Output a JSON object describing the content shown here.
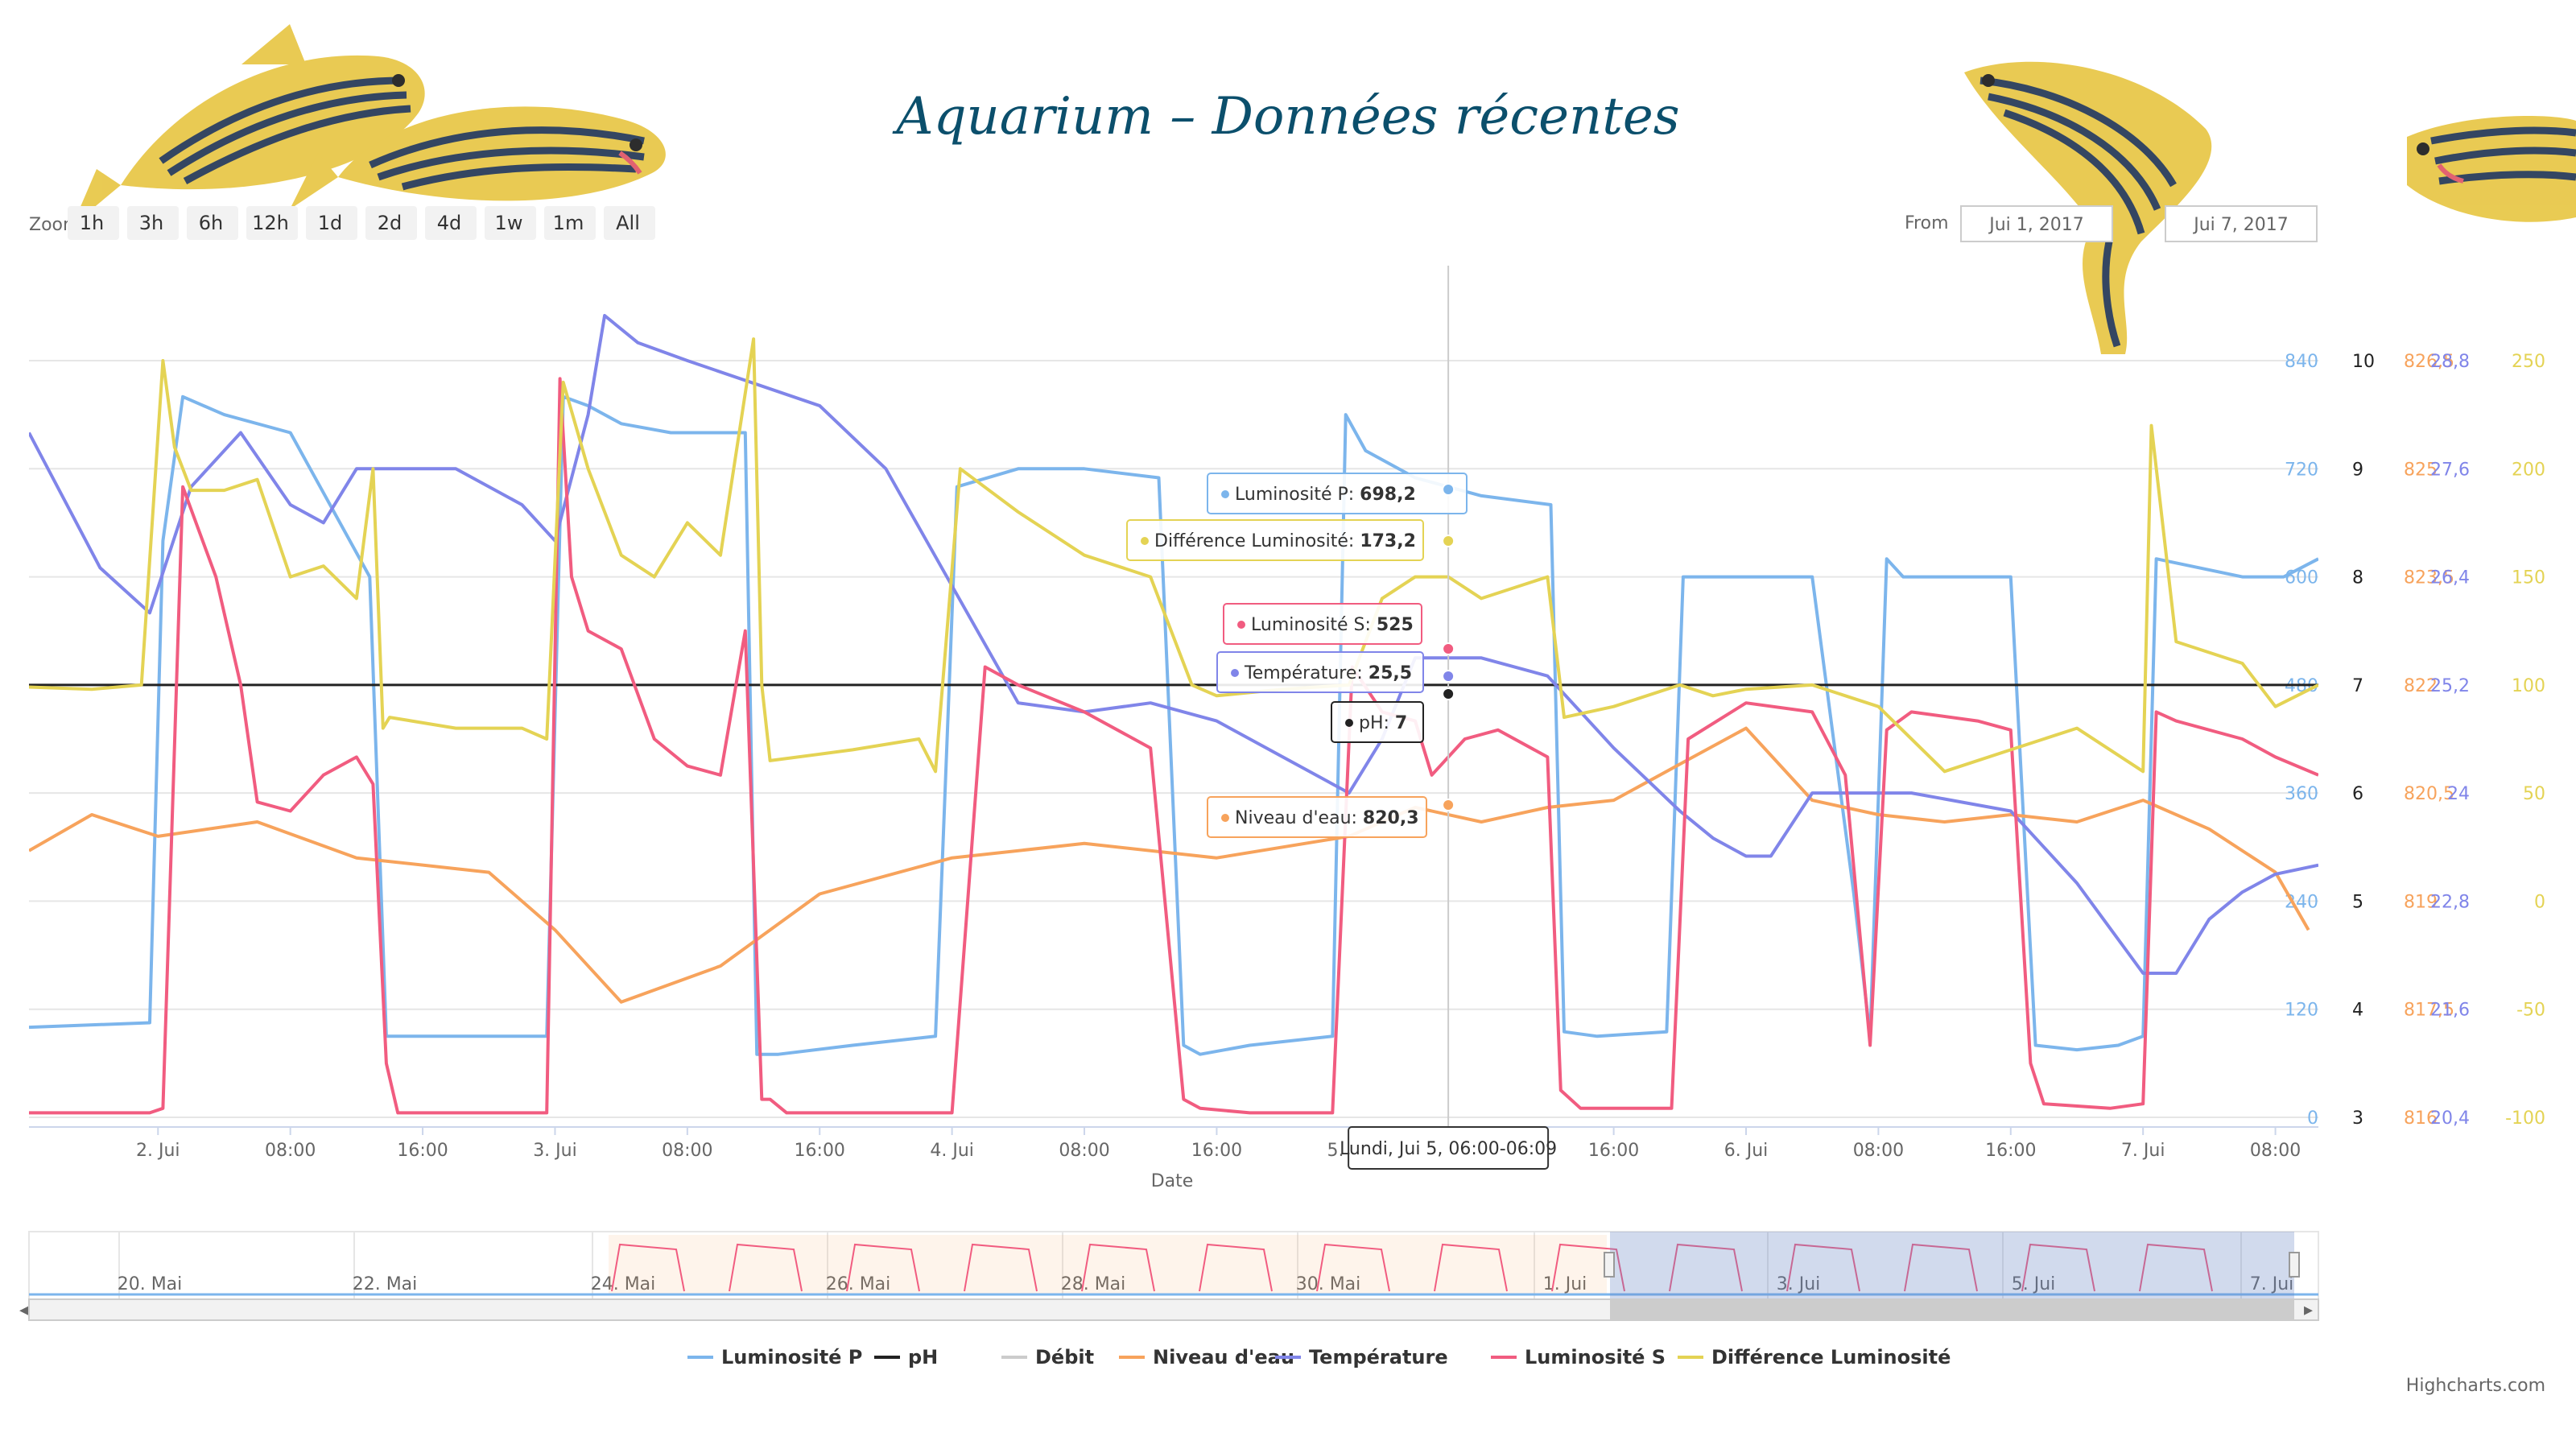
{
  "title": "Aquarium – Données récentes",
  "zoom": {
    "label": "Zoom",
    "buttons": [
      "1h",
      "3h",
      "6h",
      "12h",
      "1d",
      "2d",
      "4d",
      "1w",
      "1m",
      "All"
    ],
    "disabled": [
      "1m"
    ]
  },
  "range": {
    "from_label": "From",
    "from": "Jui 1, 2017",
    "to": "Jui 7, 2017"
  },
  "credits": "Highcharts.com",
  "tooltip_time": "Lundi, Jui 5, 06:00-06:09",
  "chart_data": {
    "type": "line",
    "xlabel": "Date",
    "x_ticks": [
      "2. Jui",
      "08:00",
      "16:00",
      "3. Jui",
      "08:00",
      "16:00",
      "4. Jui",
      "08:00",
      "16:00",
      "5. Jui",
      "08:00",
      "16:00",
      "6. Jui",
      "08:00",
      "16:00",
      "7. Jui",
      "08:00"
    ],
    "x_hours": [
      24,
      32,
      40,
      48,
      56,
      64,
      72,
      80,
      88,
      96,
      104,
      112,
      120,
      128,
      136,
      144,
      152
    ],
    "x_range_hours": [
      16.2,
      154.6
    ],
    "y_axes": [
      {
        "name": "Luminosité P",
        "ticks": [
          0,
          120,
          240,
          360,
          480,
          600,
          720,
          840
        ],
        "color": "#7cb5ec"
      },
      {
        "name": "pH",
        "ticks": [
          3,
          4,
          5,
          6,
          7,
          8,
          9,
          10
        ],
        "color": "#222222"
      },
      {
        "name": "Niveau d'eau",
        "ticks": [
          "816",
          "817,5",
          "819",
          "820,5",
          "822",
          "823,5",
          "825",
          "826,5"
        ],
        "color": "#f7a35c"
      },
      {
        "name": "Température",
        "ticks": [
          "20,4",
          "21,6",
          "22,8",
          "24",
          "25,2",
          "26,4",
          "27,6",
          "28,8"
        ],
        "color": "#8085e9"
      },
      {
        "name": "Différence Luminosité",
        "ticks": [
          "-100",
          "-50",
          "0",
          "50",
          "100",
          "150",
          "200",
          "250"
        ],
        "color": "#e4d354"
      }
    ],
    "series": [
      {
        "name": "Luminosité P",
        "color": "#7cb5ec",
        "x": [
          16.2,
          23.5,
          24.3,
          25.5,
          28,
          32,
          36.8,
          37.8,
          47.5,
          48.5,
          50,
          52,
          55,
          59.5,
          60.2,
          61.5,
          66,
          71,
          72.3,
          76,
          80,
          84.5,
          86,
          87,
          90,
          95,
          95.8,
          97,
          100,
          104,
          108.2,
          109,
          111,
          115.2,
          116.2,
          120,
          124,
          126.5,
          127.5,
          128.5,
          129.5,
          132,
          136,
          137.5,
          140,
          142.5,
          144,
          144.8,
          150,
          152.5,
          154.6
        ],
        "y": [
          100,
          105,
          640,
          800,
          780,
          760,
          600,
          90,
          90,
          800,
          790,
          770,
          760,
          760,
          70,
          70,
          80,
          90,
          700,
          720,
          720,
          710,
          80,
          70,
          80,
          90,
          780,
          740,
          710,
          690,
          680,
          95,
          90,
          95,
          600,
          600,
          600,
          250,
          90,
          620,
          600,
          600,
          600,
          80,
          75,
          80,
          90,
          620,
          600,
          600,
          620
        ]
      },
      {
        "name": "pH",
        "color": "#222222",
        "x": [
          16.2,
          154.6
        ],
        "y": [
          7,
          7
        ]
      },
      {
        "name": "Niveau d'eau",
        "color": "#f7a35c",
        "x": [
          16.2,
          20,
          24,
          30,
          36,
          44,
          48,
          52,
          58,
          64,
          72,
          80,
          88,
          96,
          100,
          104,
          108,
          112,
          116,
          120,
          124,
          128,
          132,
          136,
          140,
          144,
          148,
          152,
          154
        ],
        "y": [
          819.7,
          820.2,
          819.9,
          820.1,
          819.6,
          819.4,
          818.6,
          817.6,
          818.1,
          819.1,
          819.6,
          819.8,
          819.6,
          819.9,
          820.3,
          820.1,
          820.3,
          820.4,
          820.9,
          821.4,
          820.4,
          820.2,
          820.1,
          820.2,
          820.1,
          820.4,
          820.0,
          819.4,
          818.6
        ]
      },
      {
        "name": "Température",
        "color": "#8085e9",
        "x": [
          16.2,
          20.5,
          23.5,
          26,
          29,
          32,
          34,
          36,
          42,
          46,
          48,
          50,
          51,
          53,
          56,
          64,
          68,
          72,
          76,
          80,
          84,
          88,
          92,
          96,
          98,
          100,
          104,
          108,
          110,
          112,
          116,
          118,
          120,
          121.5,
          124,
          130,
          136,
          140,
          144,
          146,
          148,
          150,
          152,
          154.6
        ],
        "y": [
          28.0,
          26.5,
          26.0,
          27.4,
          28.0,
          27.2,
          27.0,
          27.6,
          27.6,
          27.2,
          26.8,
          28.2,
          29.3,
          29.0,
          28.8,
          28.3,
          27.6,
          26.3,
          25.0,
          24.9,
          25.0,
          24.8,
          24.4,
          24.0,
          24.6,
          25.5,
          25.5,
          25.3,
          24.9,
          24.5,
          23.8,
          23.5,
          23.3,
          23.3,
          24.0,
          24.0,
          23.8,
          23.0,
          22.0,
          22.0,
          22.6,
          22.9,
          23.1,
          23.2
        ]
      },
      {
        "name": "Luminosité S",
        "color": "#f15c80",
        "x": [
          16.2,
          23.5,
          24.3,
          25.5,
          27.5,
          29,
          30,
          32,
          34,
          36,
          37,
          37.8,
          38.5,
          47.5,
          48.3,
          49,
          50,
          52,
          54,
          56,
          58,
          59.5,
          60.5,
          61,
          62,
          64,
          66,
          68,
          70,
          72,
          74,
          76,
          80,
          84,
          86,
          87,
          90,
          95,
          96.2,
          98,
          100,
          101,
          103,
          105,
          108,
          108.8,
          110,
          115.5,
          116.5,
          120,
          124,
          126,
          127.5,
          128.5,
          130,
          134,
          136,
          137.2,
          138,
          142,
          144,
          144.8,
          146,
          150,
          152,
          154.6
        ],
        "y": [
          5,
          5,
          10,
          700,
          600,
          480,
          350,
          340,
          380,
          400,
          370,
          60,
          5,
          5,
          820,
          600,
          540,
          520,
          420,
          390,
          380,
          540,
          20,
          20,
          5,
          5,
          5,
          5,
          5,
          5,
          500,
          480,
          450,
          410,
          20,
          10,
          5,
          5,
          500,
          450,
          440,
          380,
          420,
          430,
          400,
          30,
          10,
          10,
          420,
          460,
          450,
          380,
          80,
          430,
          450,
          440,
          430,
          60,
          15,
          10,
          15,
          450,
          440,
          420,
          400,
          380
        ]
      },
      {
        "name": "Différence Luminosité",
        "color": "#e4d354",
        "x": [
          16.2,
          20,
          23,
          24.3,
          25,
          26,
          28,
          30,
          32,
          34,
          36,
          37,
          37.6,
          38,
          42,
          46,
          47.5,
          48.5,
          50,
          52,
          54,
          56,
          58,
          60,
          60.5,
          61,
          66,
          70,
          71,
          72.5,
          76,
          80,
          84,
          86.5,
          88,
          92,
          96,
          98,
          100,
          102,
          104,
          108,
          109,
          112,
          116,
          118,
          120,
          124,
          128,
          132,
          136,
          138,
          140,
          142,
          144,
          144.5,
          146,
          150,
          152,
          154.6
        ],
        "y": [
          99,
          98,
          100,
          250,
          210,
          190,
          190,
          195,
          150,
          155,
          140,
          200,
          80,
          85,
          80,
          80,
          75,
          240,
          200,
          160,
          150,
          175,
          160,
          260,
          100,
          65,
          70,
          75,
          60,
          200,
          180,
          160,
          150,
          100,
          95,
          98,
          100,
          140,
          150,
          150,
          140,
          150,
          85,
          90,
          100,
          95,
          98,
          100,
          90,
          60,
          70,
          75,
          80,
          70,
          60,
          220,
          120,
          110,
          90,
          100
        ]
      }
    ],
    "tooltips": [
      {
        "series": "Luminosité P",
        "text": "Luminosité P: ",
        "value": "698,2",
        "color": "#7cb5ec"
      },
      {
        "series": "Différence Luminosité",
        "text": "Différence Luminosité: ",
        "value": "173,2",
        "color": "#e4d354"
      },
      {
        "series": "Luminosité S",
        "text": "Luminosité S: ",
        "value": "525",
        "color": "#f15c80"
      },
      {
        "series": "Température",
        "text": "Température: ",
        "value": "25,5",
        "color": "#8085e9"
      },
      {
        "series": "pH",
        "text": "pH: ",
        "value": "7",
        "color": "#222222"
      },
      {
        "series": "Niveau d'eau",
        "text": "Niveau d'eau: ",
        "value": "820,3",
        "color": "#f7a35c"
      }
    ],
    "tooltip_hour": 102,
    "navigator": {
      "ticks": [
        "20. Mai",
        "22. Mai",
        "24. Mai",
        "26. Mai",
        "28. Mai",
        "30. Mai",
        "1. Jui",
        "3. Jui",
        "5. Jui",
        "7. Jui"
      ]
    },
    "legend": [
      {
        "name": "Luminosité P",
        "color": "#7cb5ec",
        "visible": true
      },
      {
        "name": "pH",
        "color": "#222222",
        "visible": true
      },
      {
        "name": "Débit",
        "color": "#cccccc",
        "visible": false
      },
      {
        "name": "Niveau d'eau",
        "color": "#f7a35c",
        "visible": true
      },
      {
        "name": "Température",
        "color": "#8085e9",
        "visible": true
      },
      {
        "name": "Luminosité S",
        "color": "#f15c80",
        "visible": true
      },
      {
        "name": "Différence Luminosité",
        "color": "#e4d354",
        "visible": true
      }
    ]
  }
}
